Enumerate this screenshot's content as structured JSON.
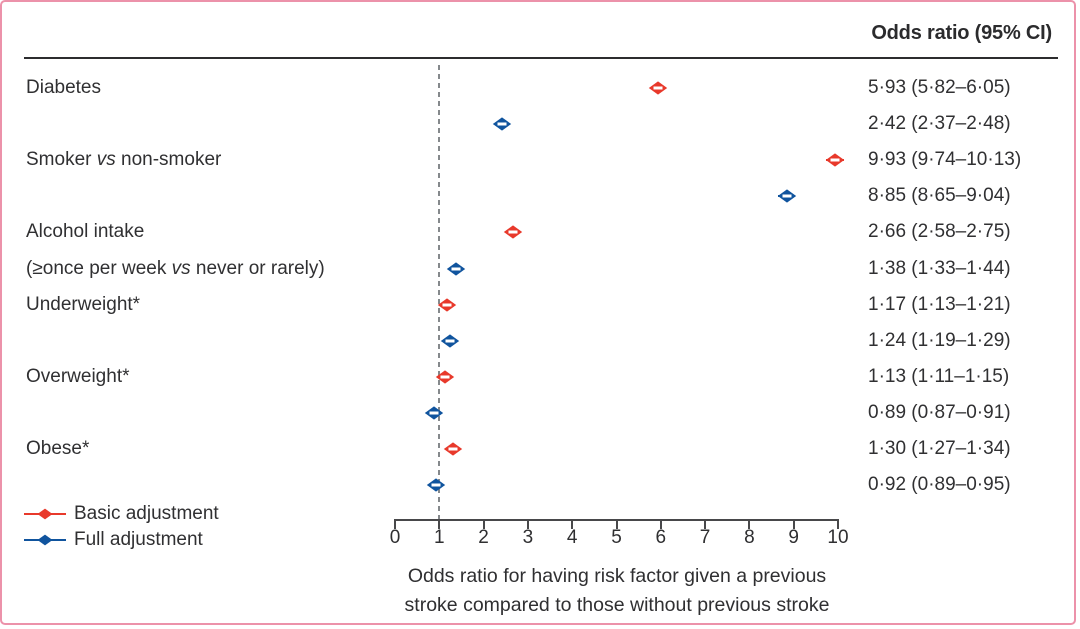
{
  "figure": {
    "border_color": "#ec92aa",
    "background": "#ffffff"
  },
  "chart_data": {
    "type": "forest",
    "value_column_header": "Odds ratio (95% CI)",
    "x_axis": {
      "min": 0,
      "max": 10,
      "ticks": [
        0,
        1,
        2,
        3,
        4,
        5,
        6,
        7,
        8,
        9,
        10
      ],
      "reference_line": 1
    },
    "xlabel_lines": [
      "Odds ratio for having risk factor given a previous",
      "stroke compared to those without previous stroke"
    ],
    "series": [
      {
        "name": "Basic adjustment",
        "color": "#e8392b",
        "marker": "diamond"
      },
      {
        "name": "Full adjustment",
        "color": "#10549e",
        "marker": "diamond"
      }
    ],
    "rows": [
      {
        "label": "Diabetes",
        "series": 0,
        "or": 5.93,
        "lo": 5.82,
        "hi": 6.05,
        "text": "5·93 (5·82–6·05)"
      },
      {
        "label": "",
        "series": 1,
        "or": 2.42,
        "lo": 2.37,
        "hi": 2.48,
        "text": "2·42 (2·37–2·48)"
      },
      {
        "label": "Smoker vs non-smoker",
        "series": 0,
        "or": 9.93,
        "lo": 9.74,
        "hi": 10.13,
        "text": "9·93 (9·74–10·13)"
      },
      {
        "label": "",
        "series": 1,
        "or": 8.85,
        "lo": 8.65,
        "hi": 9.04,
        "text": "8·85 (8·65–9·04)"
      },
      {
        "label": "Alcohol intake",
        "series": 0,
        "or": 2.66,
        "lo": 2.58,
        "hi": 2.75,
        "text": "2·66 (2·58–2·75)"
      },
      {
        "label": "(≥once per week vs never or rarely)",
        "series": 1,
        "or": 1.38,
        "lo": 1.33,
        "hi": 1.44,
        "text": "1·38 (1·33–1·44)"
      },
      {
        "label": "Underweight*",
        "series": 0,
        "or": 1.17,
        "lo": 1.13,
        "hi": 1.21,
        "text": "1·17 (1·13–1·21)"
      },
      {
        "label": "",
        "series": 1,
        "or": 1.24,
        "lo": 1.19,
        "hi": 1.29,
        "text": "1·24 (1·19–1·29)"
      },
      {
        "label": "Overweight*",
        "series": 0,
        "or": 1.13,
        "lo": 1.11,
        "hi": 1.15,
        "text": "1·13 (1·11–1·15)"
      },
      {
        "label": "",
        "series": 1,
        "or": 0.89,
        "lo": 0.87,
        "hi": 0.91,
        "text": "0·89 (0·87–0·91)"
      },
      {
        "label": "Obese*",
        "series": 0,
        "or": 1.3,
        "lo": 1.27,
        "hi": 1.34,
        "text": "1·30 (1·27–1·34)"
      },
      {
        "label": "",
        "series": 1,
        "or": 0.92,
        "lo": 0.89,
        "hi": 0.95,
        "text": "0·92 (0·89–0·95)"
      }
    ]
  }
}
